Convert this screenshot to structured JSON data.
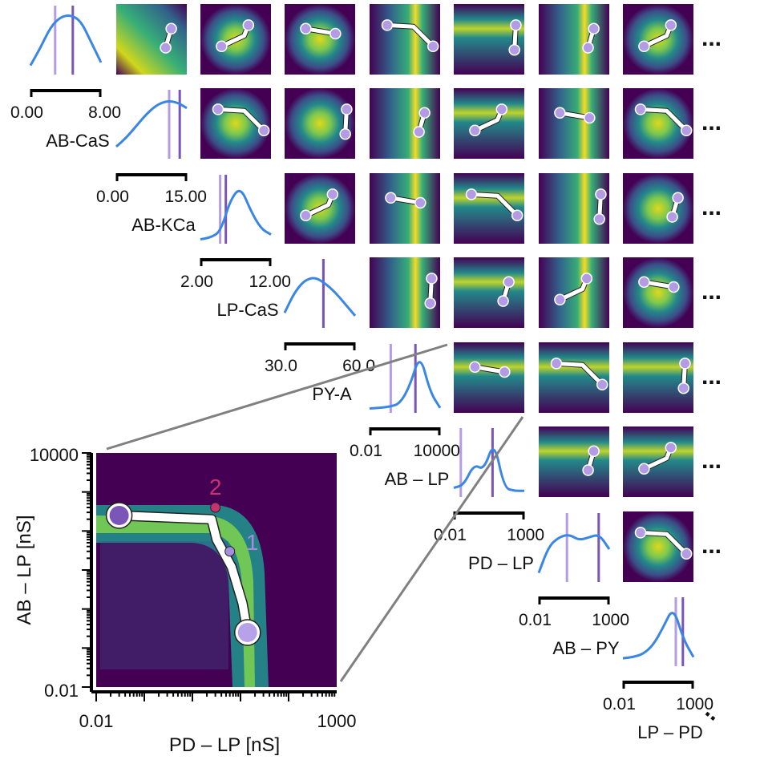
{
  "chart_data": {
    "type": "heatmap",
    "description_free": true,
    "parameters": [
      {
        "name": "AB-CaS",
        "tick_min": "0.00",
        "tick_max": "8.00"
      },
      {
        "name": "AB-KCa",
        "tick_min": "0.00",
        "tick_max": "15.00"
      },
      {
        "name": "LP-CaS",
        "tick_min": "2.00",
        "tick_max": "12.00"
      },
      {
        "name": "PY-A",
        "tick_min": "30.0",
        "tick_max": "60.0"
      },
      {
        "name": "AB – LP",
        "tick_min": "0.01",
        "tick_max": "10000"
      },
      {
        "name": "PD – LP",
        "tick_min": "0.01",
        "tick_max": "1000"
      },
      {
        "name": "AB – PY",
        "tick_min": "0.01",
        "tick_max": "1000"
      },
      {
        "name": "LP – PD",
        "tick_min": "0.01",
        "tick_max": "1000"
      }
    ],
    "ellipsis": "...",
    "ellipsis_diag": "..",
    "zoom_panel": {
      "xlabel": "PD – LP  [nS]",
      "ylabel": "AB – LP  [nS]",
      "x_ticks": [
        "0.01",
        "1000"
      ],
      "y_ticks": [
        "10000",
        "0.01"
      ],
      "xlim": [
        0.01,
        1000
      ],
      "ylim": [
        0.01,
        10000
      ],
      "xscale": "log",
      "yscale": "log",
      "path_points": [
        {
          "x": 0.03,
          "y": 250
        },
        {
          "x": 2.5,
          "y": 200
        },
        {
          "x": 3.2,
          "y": 60
        },
        {
          "x": 6.5,
          "y": 12
        },
        {
          "x": 11,
          "y": 1.4
        },
        {
          "x": 14,
          "y": 0.25
        }
      ],
      "markers": [
        {
          "label": "2",
          "x": 3.0,
          "y": 400,
          "color": "#c7336e"
        },
        {
          "label": "1",
          "x": 6.0,
          "y": 30,
          "color": "#a78bde"
        }
      ],
      "endpoints": [
        {
          "x": 0.03,
          "y": 250,
          "color": "#7c55b8"
        },
        {
          "x": 14,
          "y": 0.25,
          "color": "#b7a2ea"
        }
      ]
    },
    "colors": {
      "density_low": "#440154",
      "density_high": "#fde725",
      "marginal_line": "#3a86e6",
      "vline_light": "#b49be6",
      "vline_dark": "#7a55b3",
      "path": "#ffffff",
      "zoom_connector": "#808080"
    }
  }
}
